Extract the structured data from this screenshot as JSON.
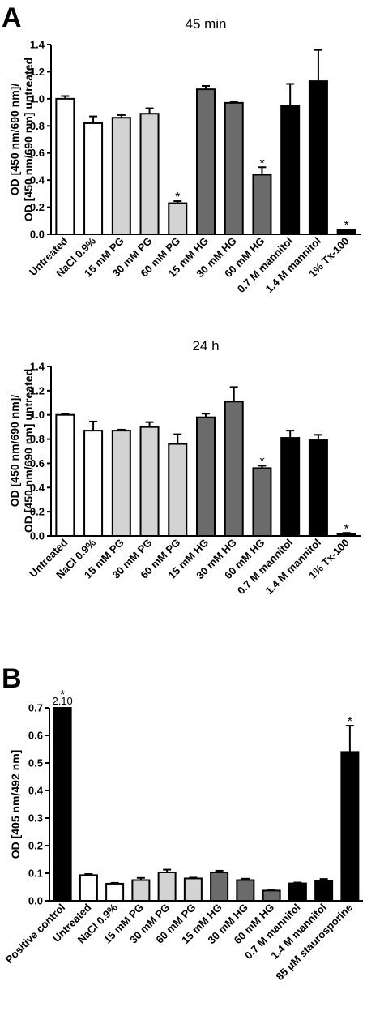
{
  "colors": {
    "white": "#ffffff",
    "light_gray": "#d3d3d3",
    "dark_gray": "#6b6b6b",
    "black": "#000000"
  },
  "panels": [
    {
      "letter": "A"
    },
    {
      "letter": ""
    },
    {
      "letter": "B"
    }
  ],
  "chart_data": [
    {
      "type": "bar",
      "title": "45 min",
      "ylabel": [
        "OD [450 nm/690 nm]/",
        "OD [450 nm/690 nm] untreated"
      ],
      "ylim": [
        0,
        1.4
      ],
      "yticks": [
        "0.0",
        "0.2",
        "0.4",
        "0.6",
        "0.8",
        "1.0",
        "1.2",
        "1.4"
      ],
      "categories": [
        "Untreated",
        "NaCl 0.9%",
        "15 mM PG",
        "30 mM PG",
        "60 mM PG",
        "15 mM HG",
        "30 mM HG",
        "60 mM HG",
        "0.7 M mannitol",
        "1.4 M mannitol",
        "1% Tx-100"
      ],
      "values": [
        1.0,
        0.82,
        0.86,
        0.89,
        0.23,
        1.07,
        0.97,
        0.44,
        0.95,
        1.13,
        0.03
      ],
      "errors": [
        0.02,
        0.05,
        0.02,
        0.04,
        0.015,
        0.025,
        0.01,
        0.055,
        0.16,
        0.23,
        0.005
      ],
      "fill": [
        "white",
        "white",
        "light_gray",
        "light_gray",
        "light_gray",
        "dark_gray",
        "dark_gray",
        "dark_gray",
        "black",
        "black",
        "black"
      ],
      "significance": [
        "",
        "",
        "",
        "",
        "*",
        "",
        "",
        "*",
        "",
        "",
        "*"
      ],
      "grid": false
    },
    {
      "type": "bar",
      "title": "24 h",
      "ylabel": [
        "OD [450 nm/690 nm]/",
        "OD [450 nm/690 nm] untreated"
      ],
      "ylim": [
        0,
        1.4
      ],
      "yticks": [
        "0.0",
        "0.2",
        "0.4",
        "0.6",
        "0.8",
        "1.0",
        "1.2",
        "1.4"
      ],
      "categories": [
        "Untreated",
        "NaCl 0.9%",
        "15 mM PG",
        "30 mM PG",
        "60 mM PG",
        "15 mM HG",
        "30 mM HG",
        "60 mM HG",
        "0.7 M mannitol",
        "1.4 M mannitol",
        "1% Tx-100"
      ],
      "values": [
        1.0,
        0.87,
        0.87,
        0.9,
        0.76,
        0.98,
        1.11,
        0.56,
        0.81,
        0.79,
        0.02
      ],
      "errors": [
        0.01,
        0.075,
        0.008,
        0.04,
        0.08,
        0.03,
        0.12,
        0.02,
        0.06,
        0.045,
        0.005
      ],
      "fill": [
        "white",
        "white",
        "light_gray",
        "light_gray",
        "light_gray",
        "dark_gray",
        "dark_gray",
        "dark_gray",
        "black",
        "black",
        "black"
      ],
      "significance": [
        "",
        "",
        "",
        "",
        "",
        "",
        "",
        "*",
        "",
        "",
        "*"
      ],
      "grid": false
    },
    {
      "type": "bar",
      "title": "",
      "ylabel": [
        "OD [405 nm/492 nm]"
      ],
      "ylim": [
        0,
        0.7
      ],
      "yticks": [
        "0.0",
        "0.1",
        "0.2",
        "0.3",
        "0.4",
        "0.5",
        "0.6",
        "0.7"
      ],
      "categories": [
        "Positive control",
        "Untreated",
        "NaCl 0.9%",
        "15 mM PG",
        "30 mM PG",
        "60 mM PG",
        "15 mM HG",
        "30 mM HG",
        "60 mM HG",
        "0.7 M mannitol",
        "1.4 M mannitol",
        "85 μM staurosporine"
      ],
      "values": [
        2.1,
        0.093,
        0.062,
        0.075,
        0.103,
        0.081,
        0.103,
        0.075,
        0.037,
        0.063,
        0.073,
        0.54
      ],
      "errors": [
        0,
        0.004,
        0.003,
        0.008,
        0.01,
        0.003,
        0.006,
        0.005,
        0.003,
        0.003,
        0.006,
        0.095
      ],
      "fill": [
        "black",
        "white",
        "white",
        "light_gray",
        "light_gray",
        "light_gray",
        "dark_gray",
        "dark_gray",
        "dark_gray",
        "black",
        "black",
        "black"
      ],
      "significance": [
        "*",
        "",
        "",
        "",
        "",
        "",
        "",
        "",
        "",
        "",
        "",
        "*"
      ],
      "value_labels": [
        "2.10",
        "",
        "",
        "",
        "",
        "",
        "",
        "",
        "",
        "",
        "",
        ""
      ],
      "grid": false
    }
  ]
}
